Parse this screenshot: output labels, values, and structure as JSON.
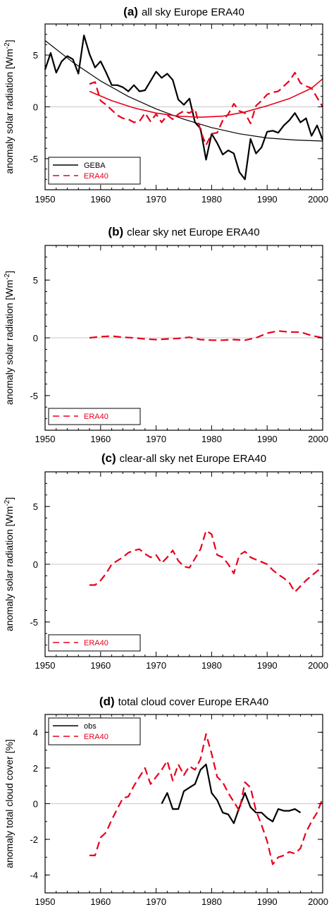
{
  "chart_data": [
    {
      "type": "line",
      "tag": "(a)",
      "title": "all sky Europe ERA40",
      "ylabel": "anomaly solar radiation [Wm",
      "ylabel_sup": "-2",
      "ylabel_end": "]",
      "xlim": [
        1950,
        2000
      ],
      "ylim": [
        -8,
        8
      ],
      "xticks": [
        "1950",
        "1960",
        "1970",
        "1980",
        "1990",
        "2000"
      ],
      "yticks": [
        {
          "v": 5,
          "label": "5"
        },
        {
          "v": 0,
          "label": "0"
        },
        {
          "v": -5,
          "label": "-5"
        }
      ],
      "legend_position": "bottom-left",
      "series": [
        {
          "name": "GEBA",
          "color": "#000000",
          "dashed": false,
          "x": [
            1950,
            1951,
            1952,
            1953,
            1954,
            1955,
            1956,
            1957,
            1958,
            1959,
            1960,
            1961,
            1962,
            1963,
            1964,
            1965,
            1966,
            1967,
            1968,
            1969,
            1970,
            1971,
            1972,
            1973,
            1974,
            1975,
            1976,
            1977,
            1978,
            1979,
            1980,
            1981,
            1982,
            1983,
            1984,
            1985,
            1986,
            1987,
            1988,
            1989,
            1990,
            1991,
            1992,
            1993,
            1994,
            1995,
            1996,
            1997,
            1998,
            1999,
            2000
          ],
          "y": [
            3.6,
            5.2,
            3.3,
            4.4,
            4.9,
            4.6,
            3.2,
            6.9,
            5.1,
            3.8,
            4.4,
            3.3,
            2.1,
            2.1,
            1.9,
            1.5,
            2.1,
            1.5,
            1.6,
            2.5,
            3.4,
            2.8,
            3.2,
            2.6,
            0.7,
            0.2,
            0.8,
            -1.5,
            -2.1,
            -5.1,
            -2.6,
            -3.5,
            -4.6,
            -4.2,
            -4.5,
            -6.3,
            -7.0,
            -3.1,
            -4.5,
            -3.9,
            -2.4,
            -2.3,
            -2.5,
            -1.8,
            -1.3,
            -0.6,
            -1.5,
            -1.1,
            -2.8,
            -1.8,
            -3.2
          ]
        },
        {
          "name": "",
          "color": "#000000",
          "dashed": false,
          "width": 1.2,
          "x": [
            1950,
            1955,
            1960,
            1965,
            1970,
            1975,
            1980,
            1985,
            1990,
            1995,
            2000
          ],
          "y": [
            6.4,
            4.3,
            2.5,
            1.0,
            -0.2,
            -1.2,
            -2.0,
            -2.6,
            -3.0,
            -3.2,
            -3.3
          ]
        },
        {
          "name": "ERA40",
          "color": "#e8001c",
          "dashed": true,
          "x": [
            1958,
            1959,
            1960,
            1961,
            1962,
            1963,
            1964,
            1965,
            1966,
            1967,
            1968,
            1969,
            1970,
            1971,
            1972,
            1973,
            1974,
            1975,
            1976,
            1977,
            1978,
            1979,
            1980,
            1981,
            1982,
            1983,
            1984,
            1985,
            1986,
            1987,
            1988,
            1989,
            1990,
            1991,
            1992,
            1993,
            1994,
            1995,
            1996,
            1997,
            1998,
            1999,
            2000
          ],
          "y": [
            2.2,
            2.4,
            0.6,
            0.2,
            -0.3,
            -0.8,
            -1.1,
            -1.2,
            -1.5,
            -1.4,
            -0.6,
            -1.4,
            -0.7,
            -1.5,
            -0.8,
            -1.2,
            -0.7,
            -0.4,
            -0.6,
            -0.2,
            -2.3,
            -3.7,
            -2.6,
            -2.5,
            -1.3,
            -0.7,
            0.3,
            -0.4,
            -0.6,
            -1.6,
            0.1,
            0.6,
            1.2,
            1.4,
            1.5,
            2.0,
            2.5,
            3.3,
            2.3,
            2.0,
            1.8,
            0.9,
            0.0
          ]
        },
        {
          "name": "",
          "color": "#e8001c",
          "dashed": false,
          "width": 1.6,
          "x": [
            1958,
            1962,
            1966,
            1970,
            1974,
            1978,
            1982,
            1986,
            1990,
            1994,
            1998,
            2000
          ],
          "y": [
            1.5,
            0.6,
            -0.1,
            -0.6,
            -0.9,
            -1.0,
            -0.9,
            -0.5,
            0.1,
            0.8,
            1.8,
            2.7
          ]
        }
      ]
    },
    {
      "type": "line",
      "tag": "(b)",
      "title": "clear sky net Europe ERA40",
      "ylabel": "anomaly solar radiation [Wm",
      "ylabel_sup": "-2",
      "ylabel_end": "]",
      "xlim": [
        1950,
        2000
      ],
      "ylim": [
        -8,
        8
      ],
      "xticks": [
        "1950",
        "1960",
        "1970",
        "1980",
        "1990",
        "2000"
      ],
      "yticks": [
        {
          "v": 5,
          "label": "5"
        },
        {
          "v": 0,
          "label": "0"
        },
        {
          "v": -5,
          "label": "-5"
        }
      ],
      "legend_position": "bottom-left",
      "series": [
        {
          "name": "ERA40",
          "color": "#e8001c",
          "dashed": true,
          "x": [
            1958,
            1960,
            1962,
            1964,
            1966,
            1968,
            1970,
            1972,
            1974,
            1976,
            1978,
            1980,
            1982,
            1984,
            1986,
            1988,
            1990,
            1992,
            1994,
            1996,
            1998,
            2000
          ],
          "y": [
            0.0,
            0.1,
            0.15,
            0.05,
            0.0,
            -0.1,
            -0.15,
            -0.1,
            -0.05,
            0.05,
            -0.15,
            -0.2,
            -0.2,
            -0.15,
            -0.2,
            0.0,
            0.4,
            0.6,
            0.5,
            0.5,
            0.2,
            0.0
          ]
        }
      ]
    },
    {
      "type": "line",
      "tag": "(c)",
      "title": "clear-all sky net Europe ERA40",
      "ylabel": "anomaly solar radiation [Wm",
      "ylabel_sup": "-2",
      "ylabel_end": "]",
      "xlim": [
        1950,
        2000
      ],
      "ylim": [
        -8,
        8
      ],
      "xticks": [
        "1950",
        "1960",
        "1970",
        "1980",
        "1990",
        "2000"
      ],
      "yticks": [
        {
          "v": 5,
          "label": "5"
        },
        {
          "v": 0,
          "label": "0"
        },
        {
          "v": -5,
          "label": "-5"
        }
      ],
      "legend_position": "bottom-left",
      "series": [
        {
          "name": "ERA40",
          "color": "#e8001c",
          "dashed": true,
          "x": [
            1958,
            1959,
            1960,
            1961,
            1962,
            1963,
            1964,
            1965,
            1966,
            1967,
            1968,
            1969,
            1970,
            1971,
            1972,
            1973,
            1974,
            1975,
            1976,
            1977,
            1978,
            1979,
            1980,
            1981,
            1982,
            1983,
            1984,
            1985,
            1986,
            1987,
            1988,
            1989,
            1990,
            1991,
            1992,
            1993,
            1994,
            1995,
            1996,
            1997,
            1998,
            1999,
            2000
          ],
          "y": [
            -1.8,
            -1.8,
            -1.4,
            -0.8,
            0.0,
            0.3,
            0.6,
            1.0,
            1.2,
            1.3,
            0.9,
            0.6,
            0.8,
            0.1,
            0.6,
            1.2,
            0.3,
            -0.2,
            -0.3,
            0.5,
            1.3,
            2.9,
            2.6,
            0.8,
            0.6,
            0.0,
            -0.8,
            0.8,
            1.1,
            0.6,
            0.4,
            0.2,
            0.0,
            -0.5,
            -0.9,
            -1.2,
            -1.6,
            -2.4,
            -1.9,
            -1.4,
            -1.0,
            -0.6,
            -0.2
          ]
        }
      ]
    },
    {
      "type": "line",
      "tag": "(d)",
      "title": "total cloud cover Europe ERA40",
      "ylabel": "anomaly total cloud cover [%]",
      "ylabel_sup": "",
      "ylabel_end": "",
      "xlim": [
        1950,
        2000
      ],
      "ylim": [
        -5,
        5
      ],
      "xticks": [
        "1950",
        "1960",
        "1970",
        "1980",
        "1990",
        "2000"
      ],
      "yticks": [
        {
          "v": 4,
          "label": "4"
        },
        {
          "v": 2,
          "label": "2"
        },
        {
          "v": 0,
          "label": "0"
        },
        {
          "v": -2,
          "label": "-2"
        },
        {
          "v": -4,
          "label": "-4"
        }
      ],
      "legend_position": "top-left",
      "series": [
        {
          "name": "obs",
          "color": "#000000",
          "dashed": false,
          "x": [
            1971,
            1972,
            1973,
            1974,
            1975,
            1976,
            1977,
            1978,
            1979,
            1980,
            1981,
            1982,
            1983,
            1984,
            1985,
            1986,
            1987,
            1988,
            1989,
            1990,
            1991,
            1992,
            1993,
            1994,
            1995,
            1996
          ],
          "y": [
            0.0,
            0.6,
            -0.3,
            -0.3,
            0.7,
            0.9,
            1.1,
            1.9,
            2.2,
            0.6,
            0.2,
            -0.5,
            -0.6,
            -1.1,
            -0.2,
            0.6,
            -0.2,
            -0.5,
            -0.5,
            -0.8,
            -1.0,
            -0.3,
            -0.4,
            -0.4,
            -0.3,
            -0.5
          ]
        },
        {
          "name": "ERA40",
          "color": "#e8001c",
          "dashed": true,
          "x": [
            1958,
            1959,
            1960,
            1961,
            1962,
            1963,
            1964,
            1965,
            1966,
            1967,
            1968,
            1969,
            1970,
            1971,
            1972,
            1973,
            1974,
            1975,
            1976,
            1977,
            1978,
            1979,
            1980,
            1981,
            1982,
            1983,
            1984,
            1985,
            1986,
            1987,
            1988,
            1989,
            1990,
            1991,
            1992,
            1993,
            1994,
            1995,
            1996,
            1997,
            1998,
            1999,
            2000
          ],
          "y": [
            -2.9,
            -2.9,
            -1.9,
            -1.6,
            -0.9,
            -0.3,
            0.3,
            0.4,
            1.0,
            1.5,
            2.0,
            1.1,
            1.5,
            1.9,
            2.4,
            1.3,
            2.2,
            1.6,
            2.1,
            1.9,
            2.5,
            3.9,
            2.8,
            1.5,
            1.2,
            0.6,
            0.1,
            -0.4,
            1.2,
            0.9,
            -0.4,
            -1.2,
            -2.1,
            -3.4,
            -3.0,
            -2.9,
            -2.7,
            -2.8,
            -2.5,
            -1.6,
            -1.0,
            -0.5,
            0.3
          ]
        }
      ]
    }
  ]
}
